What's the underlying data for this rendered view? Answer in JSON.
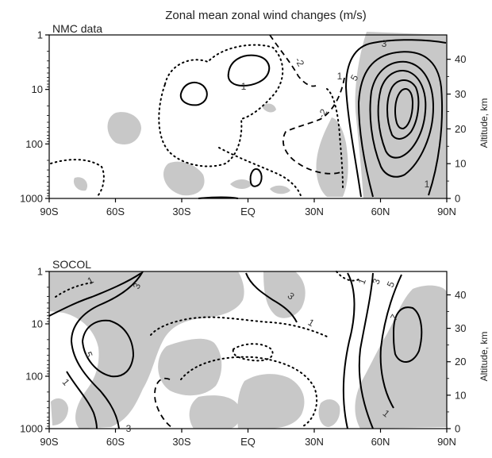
{
  "chart_data": [
    {
      "type": "contour",
      "title": "Zonal mean zonal wind  changes (m/s)",
      "panel_label": "NMC data",
      "x_ticks": [
        "90S",
        "60S",
        "30S",
        "EQ",
        "30N",
        "60N",
        "90N"
      ],
      "x_values": [
        -90,
        -60,
        -30,
        0,
        30,
        60,
        90
      ],
      "y_left_ticks": [
        "1",
        "10",
        "100",
        "1000"
      ],
      "y_left_values": [
        1,
        10,
        100,
        1000
      ],
      "y_left_scale": "log",
      "y_right_ticks": [
        "0",
        "10",
        "20",
        "30",
        "40"
      ],
      "y_right_values": [
        0,
        10,
        20,
        30,
        40
      ],
      "y_right_label": "Altitude, km",
      "contour_labels": [
        "3",
        "-2",
        "1",
        "5",
        "1",
        "-2",
        "1"
      ]
    },
    {
      "type": "contour",
      "panel_label": "SOCOL",
      "x_ticks": [
        "90S",
        "60S",
        "30S",
        "EQ",
        "30N",
        "60N",
        "90N"
      ],
      "x_values": [
        -90,
        -60,
        -30,
        0,
        30,
        60,
        90
      ],
      "y_left_ticks": [
        "1",
        "10",
        "100",
        "1000"
      ],
      "y_left_values": [
        1,
        10,
        100,
        1000
      ],
      "y_left_scale": "log",
      "y_right_ticks": [
        "0",
        "10",
        "20",
        "30",
        "40"
      ],
      "y_right_values": [
        0,
        10,
        20,
        30,
        40
      ],
      "y_right_label": "Altitude, km",
      "contour_labels": [
        "1",
        "3",
        "3",
        "1",
        "1",
        "3",
        "5",
        "5",
        "7",
        "1",
        "3",
        "1"
      ]
    }
  ]
}
